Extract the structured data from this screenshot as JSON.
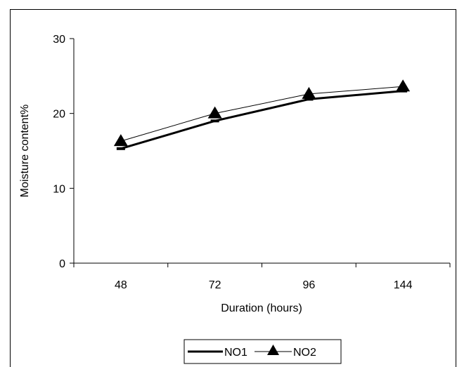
{
  "chart_data": {
    "type": "line",
    "title": "",
    "xlabel": "Duration (hours)",
    "ylabel": "Moisture content%",
    "categories": [
      "48",
      "72",
      "96",
      "144"
    ],
    "ylim": [
      0,
      30
    ],
    "yticks": [
      "0",
      "10",
      "20",
      "30"
    ],
    "grid": false,
    "legend_position": "bottom",
    "series": [
      {
        "name": "NO1",
        "values": [
          15.3,
          19.0,
          21.9,
          23.0
        ],
        "color": "#000000",
        "marker": "dash",
        "style": "thick"
      },
      {
        "name": "NO2",
        "values": [
          16.3,
          20.0,
          22.6,
          23.6
        ],
        "color": "#000000",
        "marker": "triangle",
        "style": "thin"
      }
    ]
  }
}
